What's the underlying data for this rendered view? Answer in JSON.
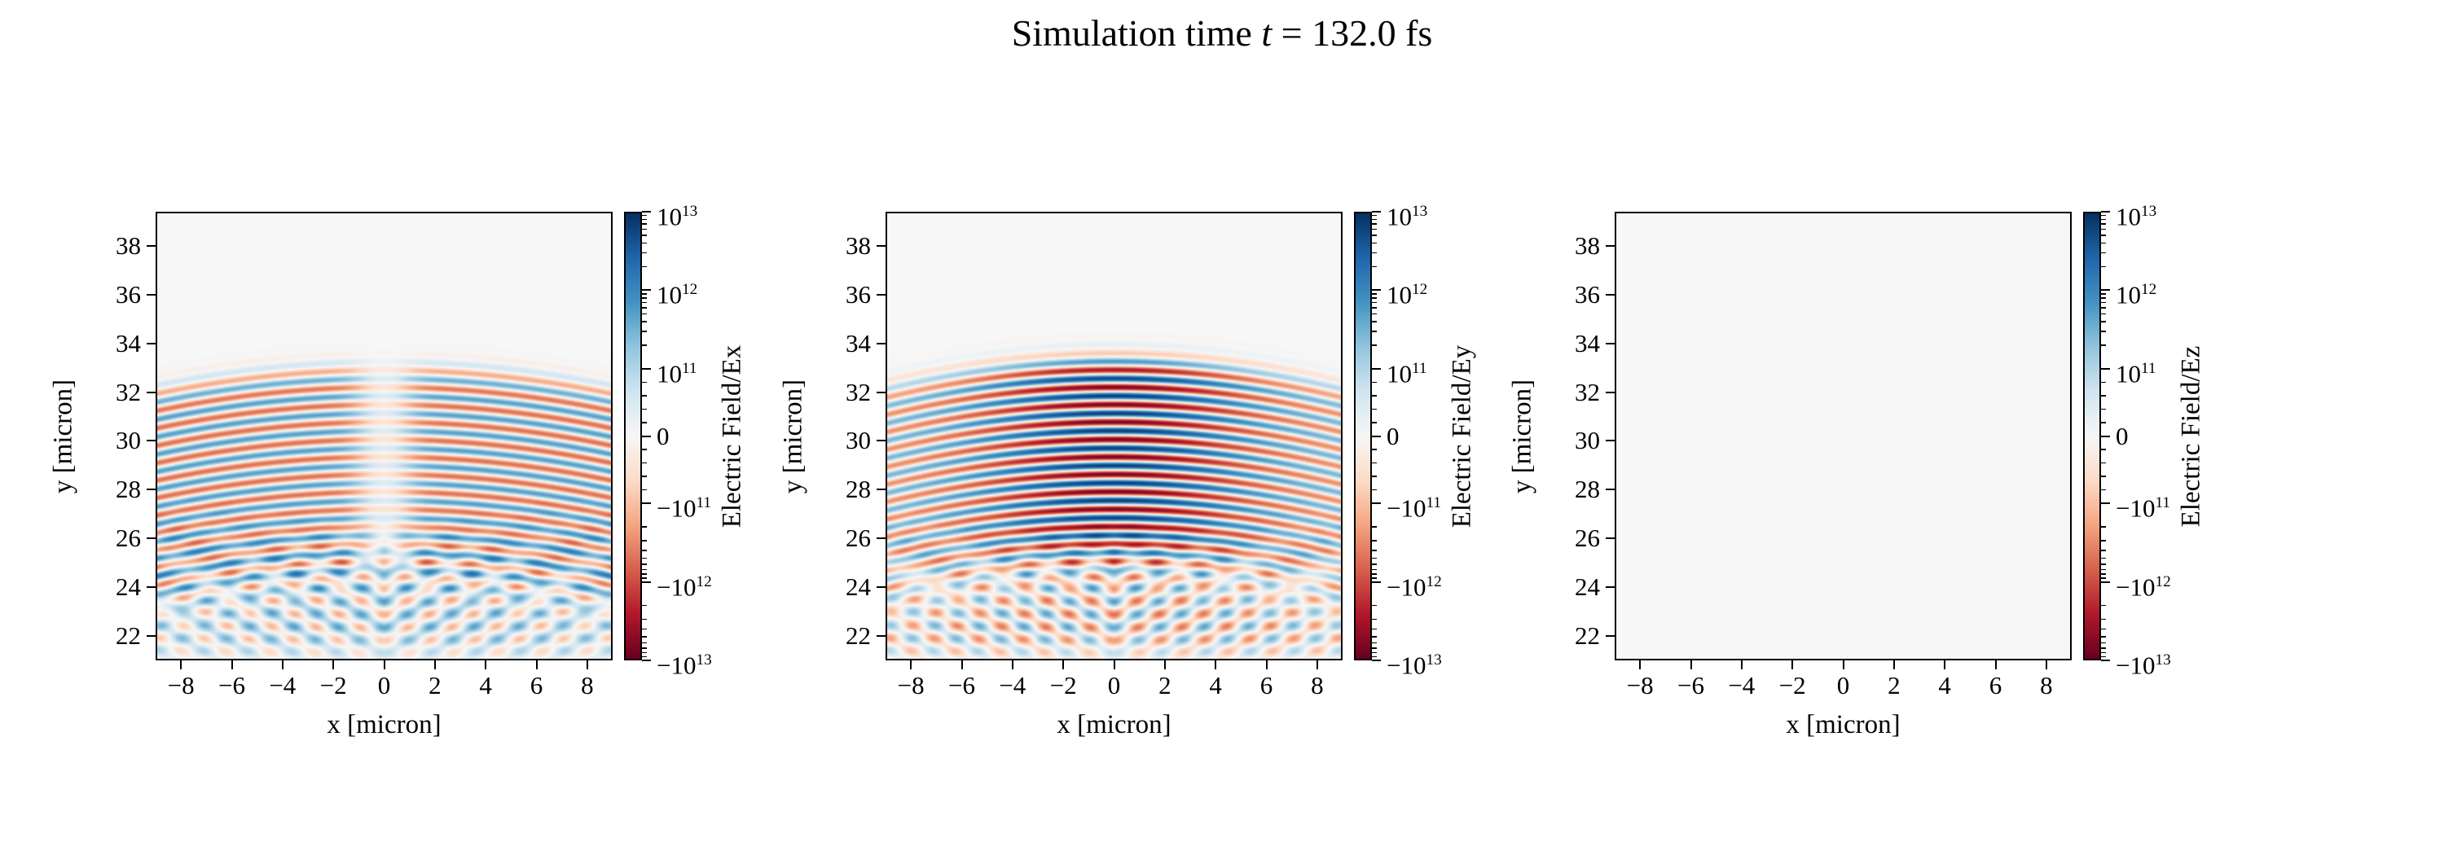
{
  "title": {
    "prefix": "Simulation time ",
    "variable": "t",
    "suffix": " = 132.0 fs"
  },
  "chart_data": {
    "type": "heatmap",
    "colormap": "RdBu",
    "scale": "symlog",
    "background": "#f7f7f7",
    "colormap_stops": [
      [
        103,
        0,
        31
      ],
      [
        178,
        24,
        43
      ],
      [
        214,
        96,
        77
      ],
      [
        244,
        165,
        130
      ],
      [
        253,
        219,
        199
      ],
      [
        247,
        247,
        247
      ],
      [
        209,
        229,
        240
      ],
      [
        146,
        197,
        222
      ],
      [
        67,
        147,
        195
      ],
      [
        33,
        102,
        172
      ],
      [
        5,
        48,
        97
      ]
    ],
    "x_axis": {
      "label": "x [micron]",
      "ticks": [
        -8,
        -6,
        -4,
        -2,
        0,
        2,
        4,
        6,
        8
      ],
      "lim": [
        -9,
        9
      ]
    },
    "y_axis": {
      "label": "y [micron]",
      "ticks": [
        22,
        24,
        26,
        28,
        30,
        32,
        34,
        36,
        38
      ],
      "lim": [
        21,
        39.4
      ]
    },
    "colorbar": {
      "vmin": -10000000000000.0,
      "vmax": 10000000000000.0,
      "linthresh": 100000000000.0,
      "ticks": [
        {
          "value": 10000000000000.0,
          "label": "10^13"
        },
        {
          "value": 1000000000000.0,
          "label": "10^12"
        },
        {
          "value": 100000000000.0,
          "label": "10^11"
        },
        {
          "value": 0,
          "label": "0"
        },
        {
          "value": -100000000000.0,
          "label": "-10^11"
        },
        {
          "value": -1000000000000.0,
          "label": "-10^12"
        },
        {
          "value": -10000000000000.0,
          "label": "-10^13"
        }
      ]
    },
    "panels": [
      {
        "name": "Ex",
        "colorbar_label": "Electric Field/Ex",
        "pattern": {
          "stripe_amp": 0.55,
          "wavelength": 0.72,
          "y_top": 33.1,
          "y_bottom": 24.4,
          "curvature": 0.012,
          "center_notch": 0.75,
          "center_boost": 0.0,
          "fan_amp": 0.3,
          "fan_bias": 0.1,
          "fan_top": 25.8
        }
      },
      {
        "name": "Ey",
        "colorbar_label": "Electric Field/Ey",
        "pattern": {
          "stripe_amp": 0.95,
          "wavelength": 0.72,
          "y_top": 33.4,
          "y_bottom": 25.0,
          "curvature": 0.014,
          "center_notch": 0.0,
          "center_boost": 0.55,
          "fan_amp": 0.36,
          "fan_bias": 0.0,
          "fan_top": 25.3
        }
      },
      {
        "name": "Ez",
        "colorbar_label": "Electric Field/Ez",
        "pattern": {
          "stripe_amp": 0.0,
          "wavelength": 0.72,
          "y_top": 0,
          "y_bottom": 0,
          "curvature": 0,
          "center_notch": 0,
          "center_boost": 0,
          "fan_amp": 0.0,
          "fan_bias": 0.0,
          "fan_top": 0
        }
      }
    ]
  }
}
